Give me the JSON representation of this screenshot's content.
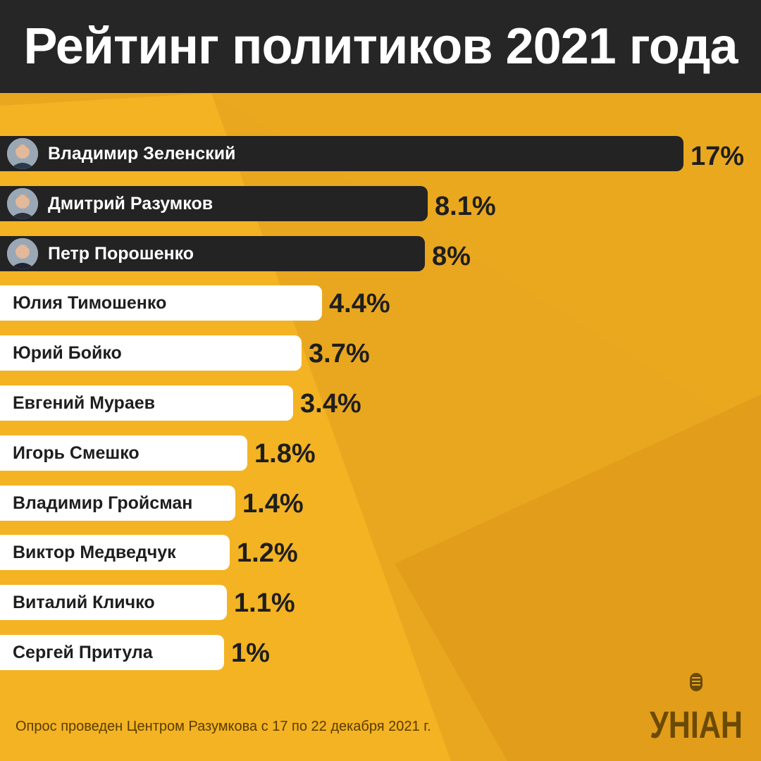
{
  "header": {
    "title": "Рейтинг политиков 2021 года"
  },
  "chart_data": {
    "type": "bar",
    "orientation": "horizontal",
    "title": "Рейтинг политиков 2021 года",
    "unit": "%",
    "categories": [
      "Владимир Зеленский",
      "Дмитрий Разумков",
      "Петр Порошенко",
      "Юлия Тимошенко",
      "Юрий Бойко",
      "Евгений Мураев",
      "Игорь Смешко",
      "Владимир Гройсман",
      "Виктор Медведчук",
      "Виталий Кличко",
      "Сергей Притула"
    ],
    "values": [
      17,
      8.1,
      8,
      4.4,
      3.7,
      3.4,
      1.8,
      1.4,
      1.2,
      1.1,
      1
    ],
    "value_labels": [
      "17%",
      "8.1%",
      "8%",
      "4.4%",
      "3.7%",
      "3.4%",
      "1.8%",
      "1.4%",
      "1.2%",
      "1.1%",
      "1%"
    ],
    "highlighted_top": 3,
    "xlim": [
      0,
      17
    ],
    "grid": false,
    "legend": "none"
  },
  "footer": {
    "note": "Опрос проведен Центром Разумкова с 17 по 22 декабря 2021 г."
  },
  "logo": {
    "text": "УНІАН",
    "icon": "microphone-icon"
  },
  "colors": {
    "background": "#e9a71f",
    "background_light": "#f3b323",
    "header": "#262626",
    "bar_highlight": "#232323",
    "bar_default": "#ffffff",
    "text_dark": "#1e1e1e"
  }
}
